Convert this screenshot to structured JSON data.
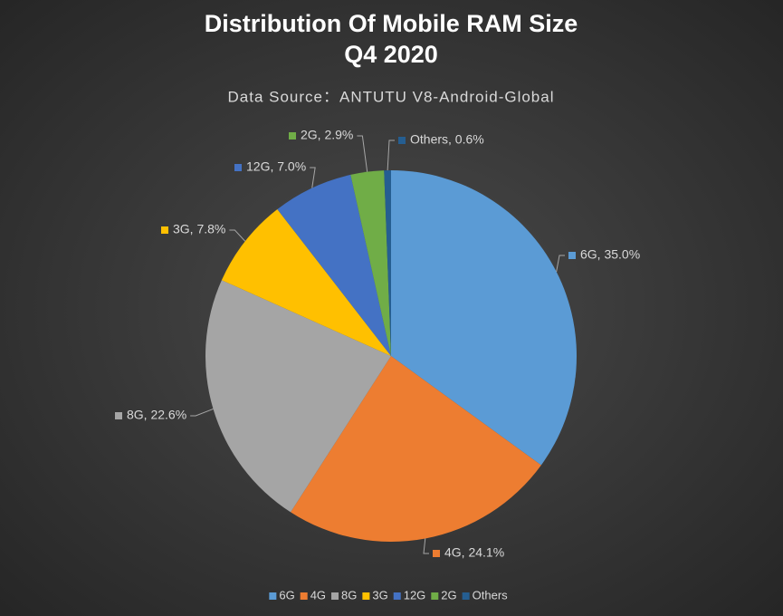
{
  "chart_data": {
    "type": "pie",
    "title": [
      "Distribution Of Mobile RAM Size",
      "Q4 2020"
    ],
    "subtitle": "Data Source：ANTUTU V8-Android-Global",
    "categories": [
      "6G",
      "4G",
      "8G",
      "3G",
      "12G",
      "2G",
      "Others"
    ],
    "values": [
      35.0,
      24.1,
      22.6,
      7.8,
      7.0,
      2.9,
      0.6
    ],
    "value_labels": [
      "6G, 35.0%",
      "4G, 24.1%",
      "8G, 22.6%",
      "3G, 7.8%",
      "12G, 7.0%",
      "2G, 2.9%",
      "Others, 0.6%"
    ],
    "colors": [
      "#5b9bd5",
      "#ed7d31",
      "#a5a5a5",
      "#ffc000",
      "#4472c4",
      "#70ad47",
      "#255e91"
    ],
    "legend": "bottom"
  }
}
